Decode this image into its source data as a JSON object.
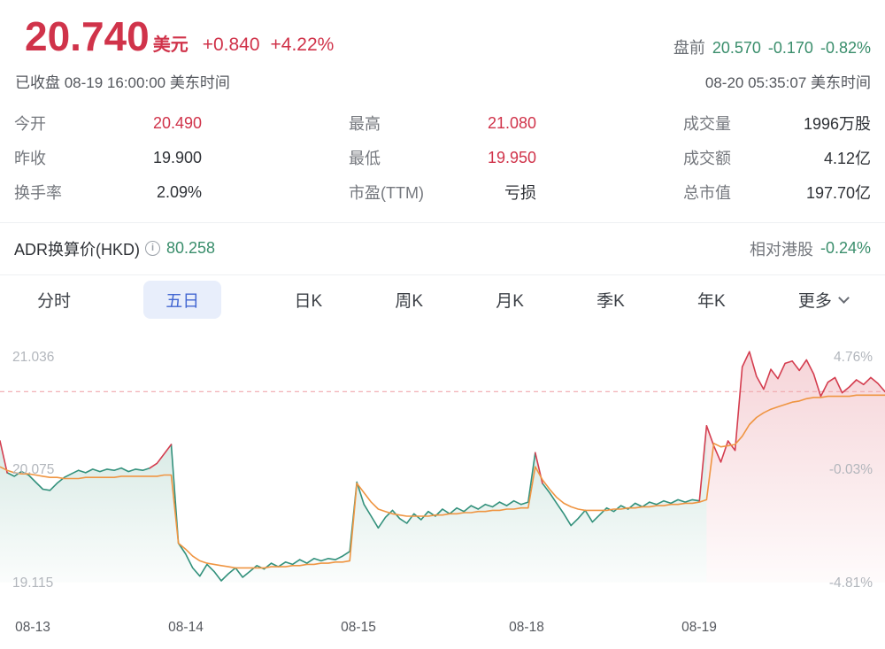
{
  "header": {
    "price": "20.740",
    "currency_label": "美元",
    "change": "+0.840",
    "change_pct": "+4.22%",
    "market_status": "已收盘 08-19 16:00:00 美东时间",
    "premarket": {
      "label": "盘前",
      "price": "20.570",
      "change": "-0.170",
      "change_pct": "-0.82%"
    },
    "quote_time": "08-20 05:35:07 美东时间"
  },
  "stats": {
    "col1": [
      {
        "label": "今开",
        "value": "20.490"
      },
      {
        "label": "昨收",
        "value": "19.900"
      },
      {
        "label": "换手率",
        "value": "2.09%"
      }
    ],
    "col2": [
      {
        "label": "最高",
        "value": "21.080"
      },
      {
        "label": "最低",
        "value": "19.950"
      },
      {
        "label": "市盈(TTM)",
        "value": "亏损"
      }
    ],
    "col3": [
      {
        "label": "成交量",
        "value": "1996万股"
      },
      {
        "label": "成交额",
        "value": "4.12亿"
      },
      {
        "label": "总市值",
        "value": "197.70亿"
      }
    ]
  },
  "adr_row": {
    "label": "ADR换算价(HKD)",
    "value": "80.258",
    "relative_label": "相对港股",
    "relative_value": "-0.24%"
  },
  "tabs": [
    {
      "label": "分时",
      "active": false
    },
    {
      "label": "五日",
      "active": true
    },
    {
      "label": "日K",
      "active": false
    },
    {
      "label": "周K",
      "active": false
    },
    {
      "label": "月K",
      "active": false
    },
    {
      "label": "季K",
      "active": false
    },
    {
      "label": "年K",
      "active": false
    },
    {
      "label": "更多",
      "active": false
    }
  ],
  "icons": {
    "info": "i"
  },
  "colors": {
    "red": "#d0334a",
    "green": "#3a8e6c",
    "chart_green": "#33917c",
    "chart_red": "#d43d4f",
    "chart_avg": "#ef9542",
    "tab_active": "#4367d2",
    "tab_active_bg": "#e8eefb",
    "dashed_line": "#f0a8ad"
  },
  "chart_data": {
    "type": "line",
    "title": "五日分时走势",
    "x_labels": [
      "08-13",
      "08-14",
      "08-15",
      "08-18",
      "08-19"
    ],
    "y_left_labels": [
      "21.036",
      "20.075",
      "19.115"
    ],
    "y_right_labels": [
      "4.76%",
      "-0.03%",
      "-4.81%"
    ],
    "y_top": 21.036,
    "y_bottom": 19.115,
    "reference_price": 20.081,
    "current_price": 20.74,
    "points_per_day": 25,
    "legend_position": "none",
    "grid": false,
    "series": [
      {
        "name": "price",
        "values": [
          20.32,
          20.05,
          20.02,
          20.06,
          20.03,
          19.97,
          19.91,
          19.9,
          19.96,
          20.01,
          20.04,
          20.07,
          20.05,
          20.08,
          20.06,
          20.08,
          20.07,
          20.09,
          20.06,
          20.08,
          20.07,
          20.09,
          20.13,
          20.21,
          20.29,
          19.45,
          19.36,
          19.24,
          19.17,
          19.27,
          19.21,
          19.13,
          19.19,
          19.24,
          19.16,
          19.21,
          19.26,
          19.23,
          19.28,
          19.25,
          19.29,
          19.27,
          19.31,
          19.28,
          19.32,
          19.3,
          19.32,
          19.31,
          19.34,
          19.38,
          19.97,
          19.78,
          19.68,
          19.58,
          19.67,
          19.73,
          19.66,
          19.62,
          19.7,
          19.65,
          19.72,
          19.68,
          19.74,
          19.7,
          19.75,
          19.72,
          19.77,
          19.74,
          19.78,
          19.76,
          19.8,
          19.77,
          19.81,
          19.78,
          19.8,
          20.22,
          19.96,
          19.88,
          19.79,
          19.7,
          19.6,
          19.66,
          19.73,
          19.63,
          19.69,
          19.75,
          19.72,
          19.77,
          19.74,
          19.79,
          19.76,
          19.8,
          19.78,
          19.81,
          19.79,
          19.82,
          19.8,
          19.82,
          19.81,
          20.45,
          20.28,
          20.14,
          20.32,
          20.24,
          20.95,
          21.08,
          20.87,
          20.76,
          20.93,
          20.85,
          20.98,
          21.0,
          20.92,
          21.01,
          20.89,
          20.7,
          20.82,
          20.86,
          20.73,
          20.78,
          20.84,
          20.8,
          20.86,
          20.81,
          20.74
        ]
      },
      {
        "name": "avg",
        "values": [
          20.1,
          20.07,
          20.05,
          20.04,
          20.04,
          20.03,
          20.02,
          20.01,
          20.01,
          20.0,
          20.0,
          20.0,
          20.01,
          20.01,
          20.01,
          20.01,
          20.01,
          20.02,
          20.02,
          20.02,
          20.02,
          20.02,
          20.02,
          20.03,
          20.03,
          19.45,
          19.4,
          19.34,
          19.3,
          19.28,
          19.27,
          19.26,
          19.25,
          19.24,
          19.24,
          19.24,
          19.24,
          19.24,
          19.25,
          19.25,
          19.25,
          19.26,
          19.26,
          19.27,
          19.27,
          19.28,
          19.28,
          19.29,
          19.29,
          19.3,
          19.96,
          19.88,
          19.8,
          19.74,
          19.72,
          19.7,
          19.69,
          19.68,
          19.68,
          19.68,
          19.68,
          19.69,
          19.69,
          19.7,
          19.7,
          19.71,
          19.71,
          19.72,
          19.72,
          19.73,
          19.73,
          19.74,
          19.74,
          19.75,
          19.75,
          20.1,
          19.99,
          19.91,
          19.84,
          19.79,
          19.76,
          19.74,
          19.73,
          19.73,
          19.73,
          19.73,
          19.74,
          19.74,
          19.75,
          19.75,
          19.76,
          19.76,
          19.77,
          19.77,
          19.78,
          19.78,
          19.79,
          19.79,
          19.8,
          19.82,
          20.3,
          20.27,
          20.28,
          20.29,
          20.36,
          20.46,
          20.52,
          20.56,
          20.59,
          20.61,
          20.63,
          20.65,
          20.66,
          20.68,
          20.69,
          20.69,
          20.7,
          20.7,
          20.7,
          20.7,
          20.71,
          20.71,
          20.71,
          20.71,
          20.71
        ]
      }
    ]
  }
}
